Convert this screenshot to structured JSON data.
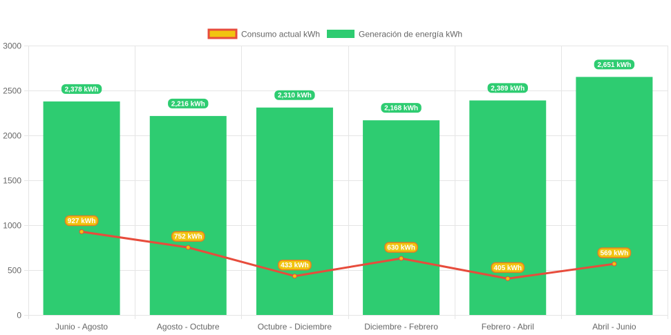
{
  "chart_data": {
    "type": "bar",
    "categories": [
      "Junio - Agosto",
      "Agosto - Octubre",
      "Octubre - Diciembre",
      "Diciembre - Febrero",
      "Febrero - Abril",
      "Abril - Junio"
    ],
    "series": [
      {
        "name": "Consumo actual kWh",
        "type": "line",
        "values": [
          927,
          752,
          433,
          630,
          405,
          569
        ],
        "labels": [
          "927 kWh",
          "752 kWh",
          "433 kWh",
          "630 kWh",
          "405 kWh",
          "569 kWh"
        ],
        "color": "#e74c3c",
        "fill": "#f1c40f"
      },
      {
        "name": "Generación de energía kWh",
        "type": "bar",
        "values": [
          2378,
          2216,
          2310,
          2168,
          2389,
          2651
        ],
        "labels": [
          "2,378 kWh",
          "2,216 kWh",
          "2,310 kWh",
          "2,168 kWh",
          "2,389 kWh",
          "2,651 kWh"
        ],
        "color": "#2ecc71"
      }
    ],
    "yticks": [
      "0",
      "500",
      "1000",
      "1500",
      "2000",
      "2500",
      "3000"
    ],
    "ylim": [
      0,
      3000
    ],
    "grid": true,
    "legend": "top-center"
  }
}
